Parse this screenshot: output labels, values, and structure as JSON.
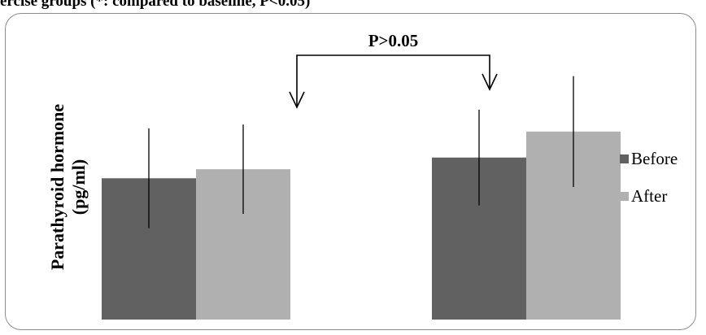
{
  "caption_fragment": "ercise groups (*: compared to baseline, P<0.05)",
  "chart_data": {
    "type": "bar",
    "title": "",
    "xlabel": "",
    "ylabel_line1": "Parathyroid hormone",
    "ylabel_line2": "(pg/ml)",
    "categories": [
      "",
      ""
    ],
    "series": [
      {
        "name": "Before",
        "color": "#616161",
        "values": [
          48.4,
          55.5
        ],
        "error": [
          17.1,
          16.4
        ]
      },
      {
        "name": "After",
        "color": "#b0b0b0",
        "values": [
          51.5,
          64.4
        ],
        "error": [
          15.3,
          19.0
        ]
      }
    ],
    "ylim": [
      0,
      100
    ],
    "grid": false,
    "legend_position": "right",
    "annotation": {
      "text": "P>0.05",
      "from_category": 0,
      "to_category": 1
    }
  }
}
